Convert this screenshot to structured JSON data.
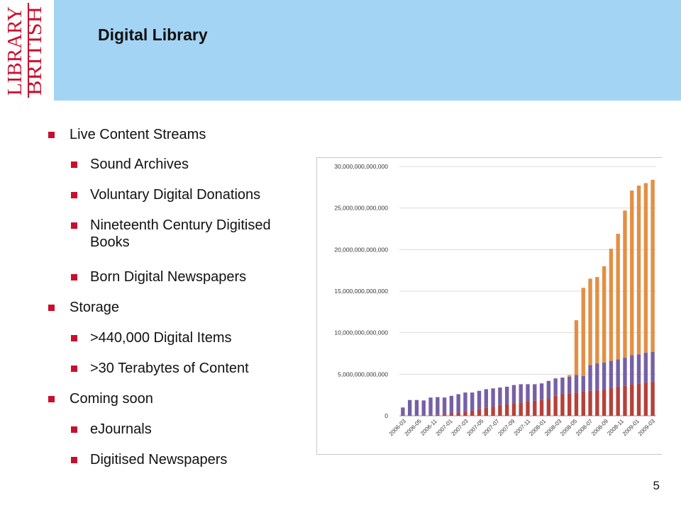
{
  "logo": {
    "lines": [
      "BRITISH",
      "LIBRARY"
    ]
  },
  "slide": {
    "title": "Digital Library",
    "page_number": "5"
  },
  "bullets": [
    {
      "level": 1,
      "text": "Live Content Streams"
    },
    {
      "level": 2,
      "text": "Sound Archives"
    },
    {
      "level": 2,
      "text": "Voluntary Digital Donations"
    },
    {
      "level": 2,
      "text": "Nineteenth Century Digitised Books"
    },
    {
      "level": 2,
      "text": "Born Digital Newspapers"
    },
    {
      "level": 1,
      "text": "Storage"
    },
    {
      "level": 2,
      "text": ">440,000 Digital Items"
    },
    {
      "level": 2,
      "text": ">30 Terabytes of Content"
    },
    {
      "level": 1,
      "text": "Coming soon"
    },
    {
      "level": 2,
      "text": "eJournals"
    },
    {
      "level": 2,
      "text": "Digitised Newspapers"
    }
  ],
  "colors": {
    "band": "#a4d4f4",
    "brand_red": "#c8102e",
    "series_red": "#b5413a",
    "series_purple": "#7560a6",
    "series_orange": "#e28f45"
  },
  "chart_data": {
    "type": "bar",
    "stacked": true,
    "ylim": [
      0,
      30000000000000
    ],
    "y_ticks": [
      0,
      5000000000000,
      10000000000000,
      15000000000000,
      20000000000000,
      25000000000000,
      30000000000000
    ],
    "y_tick_labels": [
      "0",
      "5,000,000,000,000",
      "10,000,000,000,000",
      "15,000,000,000,000",
      "20,000,000,000,000",
      "25,000,000,000,000",
      "30,000,000,000,000"
    ],
    "categories": [
      "2006-03",
      "2006-04",
      "2006-05",
      "2006-06",
      "2006-07",
      "2006-08",
      "2006-09",
      "2006-10",
      "2006-11",
      "2006-12",
      "2007-01",
      "2007-02",
      "2007-03",
      "2007-04",
      "2007-05",
      "2007-06",
      "2007-07",
      "2007-08",
      "2007-09",
      "2007-10",
      "2007-11",
      "2007-12",
      "2008-01",
      "2008-02",
      "2008-03",
      "2008-04",
      "2008-05",
      "2008-06",
      "2008-07",
      "2008-08",
      "2008-09",
      "2008-10",
      "2008-11",
      "2008-12",
      "2009-01",
      "2009-02",
      "2009-03"
    ],
    "x_tick_labels": [
      "2006-03",
      "",
      "2006-05",
      "",
      "2006-11",
      "",
      "2007-01",
      "",
      "2007-03",
      "",
      "2007-05",
      "",
      "2007-07",
      "",
      "2007-09",
      "",
      "2007-11",
      "",
      "2008-01",
      "",
      "2008-03",
      "",
      "2008-05",
      "",
      "2008-07",
      "",
      "2008-09",
      "",
      "2008-11",
      "",
      "2009-01",
      "",
      "2009-03"
    ],
    "series": [
      {
        "values": [
          0,
          0,
          0,
          0.05,
          0.1,
          0.15,
          0.2,
          0.3,
          0.4,
          0.5,
          0.6,
          0.8,
          1.0,
          1.1,
          1.3,
          1.4,
          1.5,
          1.6,
          1.7,
          1.8,
          1.9,
          2.0,
          2.4,
          2.6,
          2.7,
          2.8,
          2.9,
          3.0,
          3.1,
          3.2,
          3.4,
          3.5,
          3.6,
          3.8,
          3.9,
          4.0,
          4.1
        ]
      },
      {
        "values": [
          1.0,
          1.9,
          1.9,
          1.8,
          2.1,
          2.1,
          2.0,
          2.1,
          2.2,
          2.3,
          2.2,
          2.2,
          2.2,
          2.2,
          2.1,
          2.1,
          2.2,
          2.2,
          2.1,
          2.0,
          2.0,
          2.2,
          2.1,
          2.0,
          2.0,
          2.1,
          1.9,
          3.1,
          3.2,
          3.2,
          3.2,
          3.3,
          3.4,
          3.5,
          3.5,
          3.6,
          3.6
        ]
      },
      {
        "values": [
          0,
          0,
          0,
          0,
          0,
          0,
          0,
          0,
          0,
          0,
          0,
          0,
          0,
          0,
          0,
          0,
          0,
          0,
          0,
          0,
          0,
          0,
          0,
          0,
          0.2,
          6.6,
          10.6,
          10.4,
          10.4,
          11.6,
          13.5,
          15.1,
          17.7,
          19.8,
          20.3,
          20.4,
          20.7
        ]
      }
    ],
    "value_unit_scale": 1000000000000
  }
}
